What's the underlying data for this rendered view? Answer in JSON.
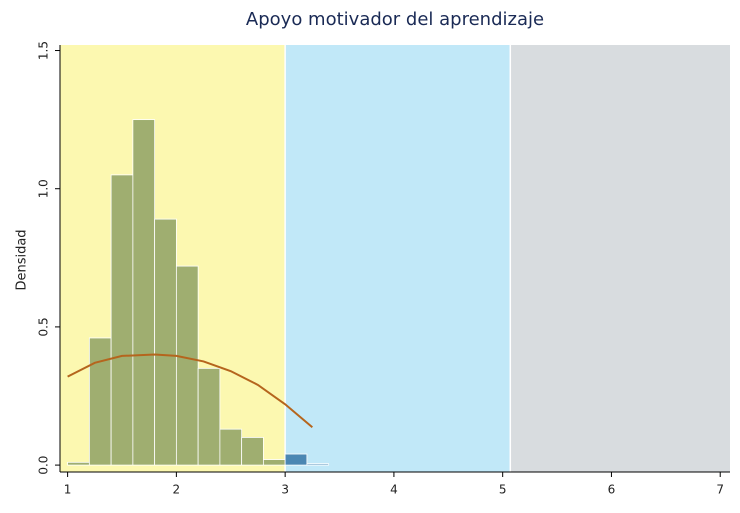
{
  "chart_data": {
    "type": "histogram",
    "title": "Apoyo motivador del aprendizaje",
    "ylabel": "Densidad",
    "xlim": [
      0.93,
      7.09
    ],
    "ylim": [
      -0.025,
      1.52
    ],
    "xticks": [
      1,
      2,
      3,
      4,
      5,
      6,
      7
    ],
    "yticks": [
      {
        "value": 0,
        "label": "0.0"
      },
      {
        "value": 0.5,
        "label": "0.5"
      },
      {
        "value": 1,
        "label": "1.0"
      },
      {
        "value": 1.5,
        "label": "1.5"
      }
    ],
    "regions": [
      {
        "from": 0.93,
        "to": 3.0,
        "color": "#fcf8b0"
      },
      {
        "from": 3.0,
        "to": 5.07,
        "color": "#c1e8f8"
      },
      {
        "from": 5.07,
        "to": 7.09,
        "color": "#d8dcdf"
      }
    ],
    "bins": [
      1.0,
      1.2,
      1.4,
      1.6,
      1.8,
      2.0,
      2.2,
      2.4,
      2.6,
      2.8,
      3.0,
      3.2,
      3.4
    ],
    "values": [
      0.01,
      0.46,
      1.05,
      1.25,
      0.89,
      0.72,
      0.35,
      0.13,
      0.1,
      0.02,
      0.04,
      0.005
    ],
    "bar_colors": [
      "#9fae70",
      "#9fae70",
      "#9fae70",
      "#9fae70",
      "#9fae70",
      "#9fae70",
      "#9fae70",
      "#9fae70",
      "#9fae70",
      "#9fae70",
      "#4b87b3",
      "#6fa3c6"
    ],
    "curve": {
      "color": "#b5651d",
      "x": [
        1.0,
        1.25,
        1.5,
        1.8,
        2.0,
        2.25,
        2.5,
        2.75,
        3.0,
        3.25
      ],
      "values": [
        0.32,
        0.37,
        0.395,
        0.4,
        0.395,
        0.375,
        0.34,
        0.29,
        0.22,
        0.137
      ]
    }
  }
}
